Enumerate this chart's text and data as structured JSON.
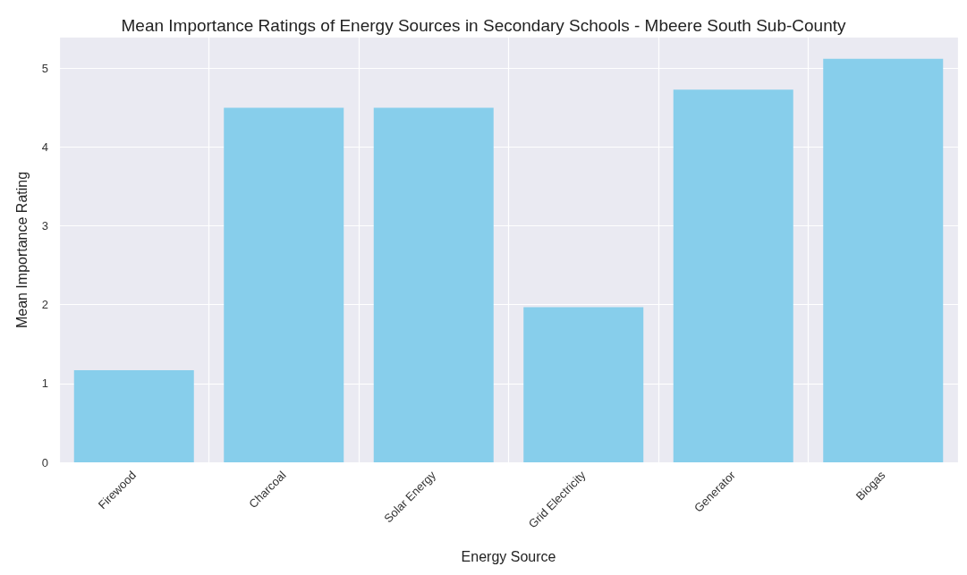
{
  "chart_data": {
    "type": "bar",
    "title": "Mean Importance Ratings of Energy Sources in Secondary Schools - Mbeere South Sub-County",
    "xlabel": "Energy Source",
    "ylabel": "Mean Importance Rating",
    "categories": [
      "Firewood",
      "Charcoal",
      "Solar Energy",
      "Grid Electricity",
      "Generator",
      "Biogas"
    ],
    "values": [
      1.17,
      4.5,
      4.5,
      1.97,
      4.73,
      5.12
    ],
    "color": "#87ceeb",
    "ylim": [
      0,
      5.39
    ],
    "yticks": [
      0,
      1,
      2,
      3,
      4,
      5
    ],
    "grid": true
  }
}
